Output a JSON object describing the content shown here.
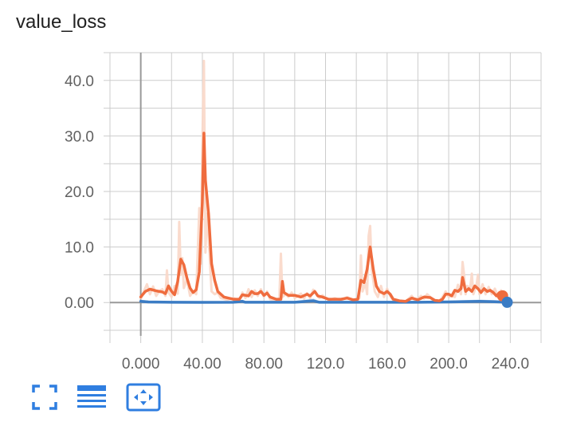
{
  "title": "value_loss",
  "chart_data": {
    "type": "line",
    "title": "value_loss",
    "xlabel": "",
    "ylabel": "",
    "xlim": [
      -20,
      260
    ],
    "ylim": [
      -6,
      45
    ],
    "x_ticks": [
      0,
      40,
      80,
      120,
      160,
      200,
      240
    ],
    "x_tick_labels": [
      "0.000",
      "40.00",
      "80.00",
      "120.0",
      "160.0",
      "200.0",
      "240.0"
    ],
    "y_ticks": [
      0,
      10,
      20,
      30,
      40
    ],
    "y_tick_labels": [
      "0.00",
      "10.0",
      "20.0",
      "30.0",
      "40.0"
    ],
    "x_minor_ticks": [
      -20,
      20,
      60,
      100,
      140,
      180,
      220,
      260
    ],
    "y_minor_ticks": [
      -5,
      5,
      15,
      25,
      35,
      45
    ],
    "grid": true,
    "series": [
      {
        "color": "#ef6c3e",
        "raw_color": "#fad7c8",
        "smoothed": [
          [
            0,
            1
          ],
          [
            3,
            2
          ],
          [
            6,
            2.4
          ],
          [
            10,
            2.1
          ],
          [
            14,
            1.9
          ],
          [
            16,
            1.6
          ],
          [
            18,
            3
          ],
          [
            20,
            2
          ],
          [
            22,
            1.4
          ],
          [
            24,
            3.8
          ],
          [
            26,
            7.8
          ],
          [
            28,
            6.8
          ],
          [
            30,
            4.4
          ],
          [
            32,
            2.6
          ],
          [
            34,
            1.8
          ],
          [
            36,
            2.3
          ],
          [
            38,
            5.5
          ],
          [
            40,
            18
          ],
          [
            41,
            30.5
          ],
          [
            42,
            22
          ],
          [
            44,
            16
          ],
          [
            46,
            7
          ],
          [
            48,
            4
          ],
          [
            50,
            2
          ],
          [
            54,
            1
          ],
          [
            60,
            0.6
          ],
          [
            64,
            0.6
          ],
          [
            66,
            1.4
          ],
          [
            70,
            1.2
          ],
          [
            72,
            2
          ],
          [
            74,
            1.6
          ],
          [
            76,
            1.6
          ],
          [
            78,
            2
          ],
          [
            80,
            1.3
          ],
          [
            82,
            1.7
          ],
          [
            84,
            1
          ],
          [
            88,
            0.6
          ],
          [
            91,
            0.6
          ],
          [
            92,
            3.8
          ],
          [
            93,
            1.8
          ],
          [
            96,
            1.3
          ],
          [
            100,
            1.3
          ],
          [
            104,
            1
          ],
          [
            108,
            1.5
          ],
          [
            110,
            1.2
          ],
          [
            113,
            2
          ],
          [
            115,
            1.2
          ],
          [
            118,
            1
          ],
          [
            122,
            0.6
          ],
          [
            126,
            0.6
          ],
          [
            130,
            0.6
          ],
          [
            134,
            0.8
          ],
          [
            138,
            0.5
          ],
          [
            141,
            0.6
          ],
          [
            143,
            4
          ],
          [
            145,
            3.6
          ],
          [
            147,
            6
          ],
          [
            149,
            10
          ],
          [
            151,
            6
          ],
          [
            153,
            3
          ],
          [
            155,
            2
          ],
          [
            158,
            1.6
          ],
          [
            160,
            2
          ],
          [
            162,
            1.5
          ],
          [
            164,
            0.6
          ],
          [
            168,
            0.3
          ],
          [
            172,
            0.2
          ],
          [
            176,
            0.8
          ],
          [
            180,
            0.5
          ],
          [
            184,
            1
          ],
          [
            188,
            0.9
          ],
          [
            191,
            0.4
          ],
          [
            194,
            0.3
          ],
          [
            196,
            0.6
          ],
          [
            198,
            1.5
          ],
          [
            200,
            1.5
          ],
          [
            202,
            1.2
          ],
          [
            204,
            2.2
          ],
          [
            206,
            2
          ],
          [
            208,
            2.5
          ],
          [
            209,
            4.5
          ],
          [
            211,
            2
          ],
          [
            213,
            2.5
          ],
          [
            215,
            2
          ],
          [
            217,
            3
          ],
          [
            219,
            2.5
          ],
          [
            221,
            1.8
          ],
          [
            223,
            2.5
          ],
          [
            225,
            2
          ],
          [
            227,
            2.2
          ],
          [
            229,
            1.8
          ],
          [
            231,
            1.2
          ],
          [
            233,
            1.8
          ],
          [
            234,
            1.2
          ],
          [
            235,
            1.2
          ]
        ],
        "raw": [
          [
            0,
            0.6
          ],
          [
            2,
            2
          ],
          [
            4,
            3.3
          ],
          [
            6,
            1.5
          ],
          [
            8,
            2.9
          ],
          [
            10,
            1.2
          ],
          [
            12,
            2
          ],
          [
            14,
            2.4
          ],
          [
            16,
            1.2
          ],
          [
            17,
            5.8
          ],
          [
            18,
            1.8
          ],
          [
            20,
            1
          ],
          [
            22,
            3
          ],
          [
            24,
            1.6
          ],
          [
            25,
            14.5
          ],
          [
            26,
            5
          ],
          [
            27,
            8
          ],
          [
            28,
            2.6
          ],
          [
            30,
            4.2
          ],
          [
            32,
            1.2
          ],
          [
            34,
            2
          ],
          [
            36,
            1.5
          ],
          [
            38,
            17
          ],
          [
            39,
            7
          ],
          [
            40,
            28
          ],
          [
            41,
            43.5
          ],
          [
            42,
            9
          ],
          [
            43,
            16
          ],
          [
            44,
            12
          ],
          [
            46,
            2
          ],
          [
            48,
            1.5
          ],
          [
            50,
            1.8
          ],
          [
            52,
            0.8
          ],
          [
            56,
            0.5
          ],
          [
            60,
            0.8
          ],
          [
            64,
            0.4
          ],
          [
            66,
            1.8
          ],
          [
            68,
            0.8
          ],
          [
            70,
            2.4
          ],
          [
            72,
            1
          ],
          [
            74,
            2.2
          ],
          [
            76,
            1.2
          ],
          [
            78,
            2.4
          ],
          [
            80,
            1
          ],
          [
            82,
            2
          ],
          [
            84,
            0.6
          ],
          [
            88,
            0.4
          ],
          [
            90,
            0.4
          ],
          [
            91,
            8.8
          ],
          [
            92,
            1
          ],
          [
            94,
            1.5
          ],
          [
            96,
            1
          ],
          [
            98,
            1.8
          ],
          [
            100,
            0.8
          ],
          [
            104,
            1.6
          ],
          [
            106,
            0.7
          ],
          [
            108,
            1.7
          ],
          [
            110,
            0.8
          ],
          [
            112,
            2.3
          ],
          [
            114,
            1.6
          ],
          [
            116,
            0.8
          ],
          [
            118,
            1.3
          ],
          [
            122,
            0.4
          ],
          [
            126,
            0.8
          ],
          [
            130,
            0.4
          ],
          [
            134,
            1
          ],
          [
            138,
            0.4
          ],
          [
            142,
            0.8
          ],
          [
            143,
            8.5
          ],
          [
            144,
            2
          ],
          [
            146,
            3.5
          ],
          [
            147,
            1.5
          ],
          [
            148,
            12
          ],
          [
            149,
            13.8
          ],
          [
            150,
            6
          ],
          [
            152,
            2
          ],
          [
            154,
            1
          ],
          [
            156,
            3
          ],
          [
            158,
            1
          ],
          [
            160,
            2.5
          ],
          [
            162,
            1.2
          ],
          [
            164,
            0.4
          ],
          [
            168,
            0.3
          ],
          [
            172,
            0.2
          ],
          [
            176,
            1.2
          ],
          [
            178,
            0.4
          ],
          [
            180,
            0.7
          ],
          [
            182,
            1.2
          ],
          [
            184,
            0.7
          ],
          [
            186,
            1.5
          ],
          [
            188,
            1
          ],
          [
            190,
            0.2
          ],
          [
            194,
            0.3
          ],
          [
            196,
            1
          ],
          [
            198,
            2
          ],
          [
            200,
            1
          ],
          [
            202,
            1.2
          ],
          [
            204,
            1
          ],
          [
            206,
            3.2
          ],
          [
            208,
            1.5
          ],
          [
            209,
            7.3
          ],
          [
            210,
            5
          ],
          [
            211,
            1.5
          ],
          [
            212,
            3
          ],
          [
            214,
            2.6
          ],
          [
            215,
            5.2
          ],
          [
            216,
            1.5
          ],
          [
            218,
            3
          ],
          [
            219,
            5
          ],
          [
            220,
            1.5
          ],
          [
            222,
            3.3
          ],
          [
            224,
            1.5
          ],
          [
            226,
            2.8
          ],
          [
            228,
            1.5
          ],
          [
            230,
            2.5
          ],
          [
            232,
            1
          ],
          [
            234,
            2.2
          ],
          [
            235,
            1.2
          ]
        ]
      },
      {
        "color": "#3b7cc4",
        "raw_color": "#b9d3ee",
        "smoothed": [
          [
            0,
            0.2
          ],
          [
            5,
            0.1
          ],
          [
            20,
            0.05
          ],
          [
            40,
            0.03
          ],
          [
            60,
            0.05
          ],
          [
            66,
            0.2
          ],
          [
            68,
            0.05
          ],
          [
            80,
            0.05
          ],
          [
            100,
            0.05
          ],
          [
            112,
            0.3
          ],
          [
            116,
            0.05
          ],
          [
            140,
            0.05
          ],
          [
            160,
            0.05
          ],
          [
            180,
            0.05
          ],
          [
            200,
            0.1
          ],
          [
            220,
            0.2
          ],
          [
            230,
            0.15
          ],
          [
            238,
            0.05
          ]
        ],
        "raw": [
          [
            0,
            0.3
          ],
          [
            5,
            0.1
          ],
          [
            20,
            0.05
          ],
          [
            40,
            0.03
          ],
          [
            60,
            0.05
          ],
          [
            66,
            0.3
          ],
          [
            68,
            0.05
          ],
          [
            80,
            0.05
          ],
          [
            100,
            0.05
          ],
          [
            112,
            0.5
          ],
          [
            116,
            0.05
          ],
          [
            140,
            0.05
          ],
          [
            160,
            0.05
          ],
          [
            180,
            0.05
          ],
          [
            200,
            0.15
          ],
          [
            220,
            0.3
          ],
          [
            230,
            0.2
          ],
          [
            238,
            0.05
          ]
        ]
      }
    ]
  },
  "toolbar": {
    "expand_icon": "fullscreen-icon",
    "data_icon": "list-icon",
    "fit_icon": "fit-domain-icon"
  },
  "colors": {
    "accent": "#2f7ee0",
    "grid": "#cccccc",
    "zero_line": "#999999"
  }
}
